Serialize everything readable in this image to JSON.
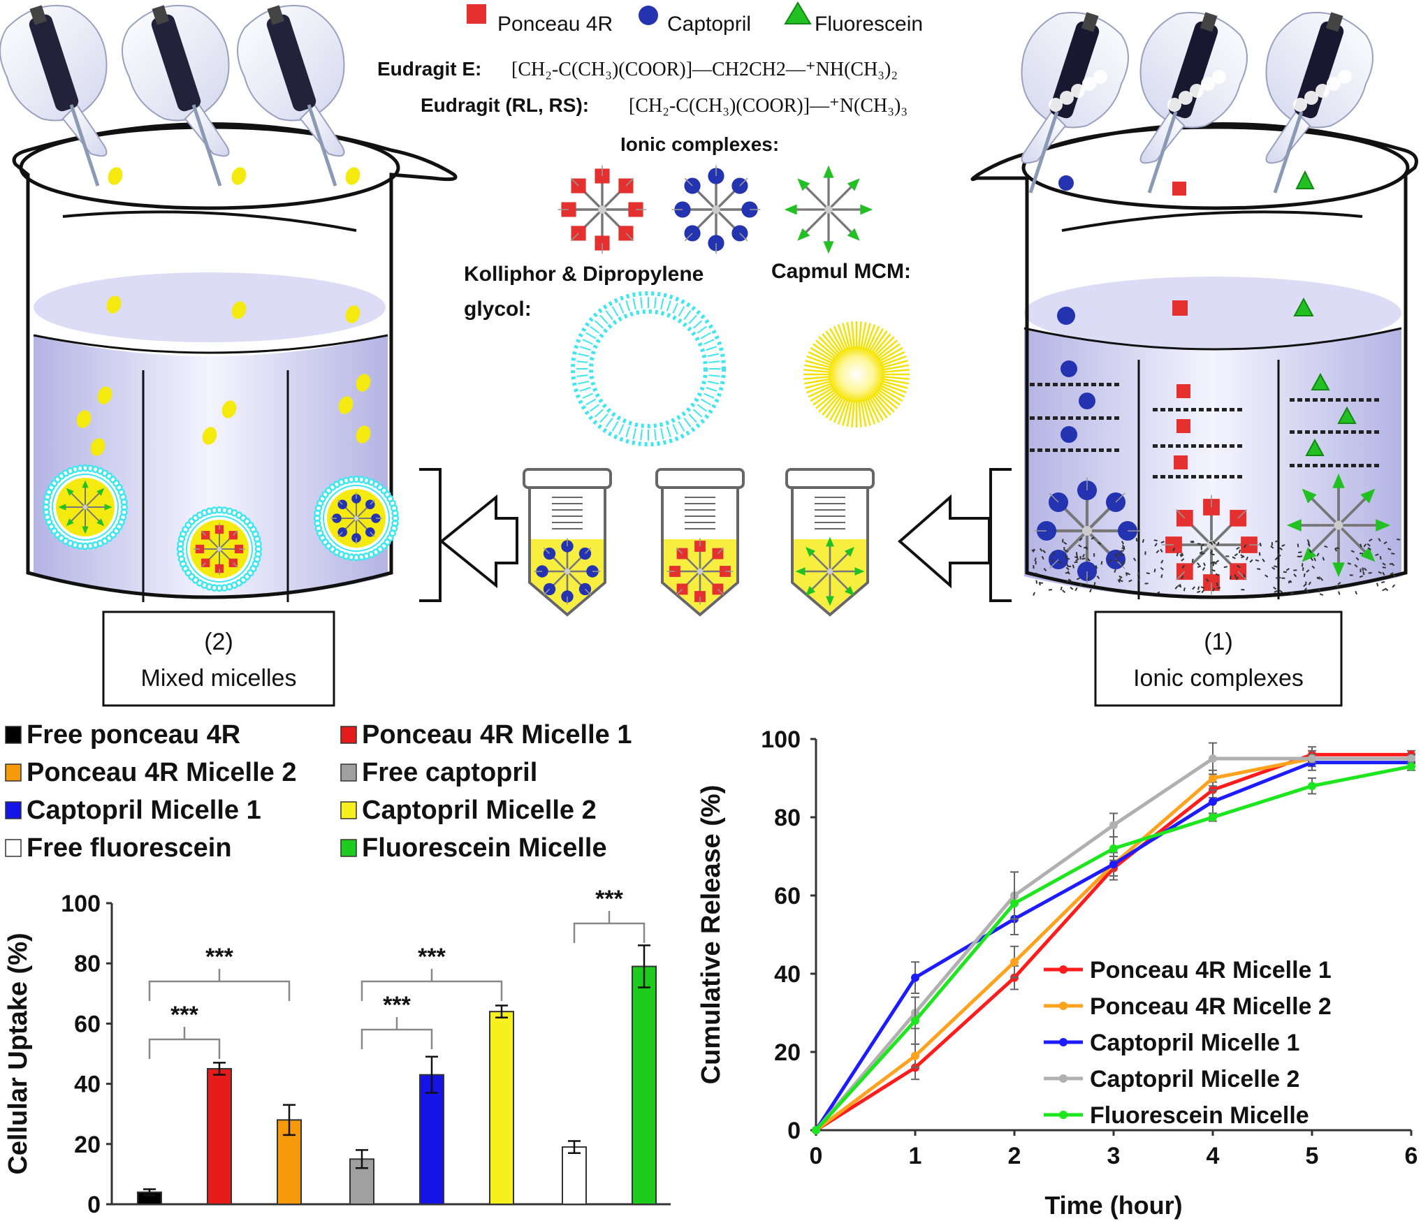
{
  "legend_top": {
    "square": "Ponceau 4R",
    "circle": "Captopril",
    "triangle": "Fluorescein"
  },
  "formulas": {
    "e_label": "Eudragit E:",
    "e_formula": "[CH₂-C(CH₃)(COOR)]—CH2CH2—⁺NH(CH₃)₂",
    "rl_label": "Eudragit (RL, RS):",
    "rl_formula": "[CH₂-C(CH₃)(COOR)]—⁺N(CH₃)₃"
  },
  "ionic_complexes_label": "Ionic complexes:",
  "kolliphor_label_1": "Kolliphor & Dipropylene",
  "kolliphor_label_2": "glycol:",
  "capmul_label": "Capmul MCM:",
  "box_left": {
    "num": "(2)",
    "name": "Mixed micelles"
  },
  "box_right": {
    "num": "(1)",
    "name": "Ionic complexes"
  },
  "colors": {
    "red": "#e53030",
    "blue": "#2433b0",
    "green": "#22c022",
    "yellow": "#f5ea10",
    "cyan": "#3fe6f0",
    "black": "#000000",
    "orange": "#f79a0a",
    "gray": "#a0a0a0",
    "white": "#ffffff"
  },
  "chart_data": [
    {
      "type": "bar",
      "ylabel": "Cellular Uptake (%)",
      "ylim": [
        0,
        100
      ],
      "yticks": [
        "0",
        "20",
        "40",
        "60",
        "80",
        "100"
      ],
      "legend_placement": "top",
      "legend": [
        "Free ponceau 4R",
        "Ponceau 4R Micelle 1",
        "Ponceau 4R Micelle 2",
        "Free captopril",
        "Captopril Micelle 1",
        "Captopril Micelle 2",
        "Free fluorescein",
        "Fluorescein Micelle"
      ],
      "series": [
        {
          "name": "Free ponceau 4R",
          "color": "#000000",
          "value": 4,
          "error": 1
        },
        {
          "name": "Ponceau 4R Micelle 1",
          "color": "#e61c1c",
          "value": 45,
          "error": 2
        },
        {
          "name": "Ponceau 4R Micelle 2",
          "color": "#f79a0a",
          "value": 28,
          "error": 5
        },
        {
          "name": "Free captopril",
          "color": "#a0a0a0",
          "value": 15,
          "error": 3
        },
        {
          "name": "Captopril Micelle 1",
          "color": "#1414e6",
          "value": 43,
          "error": 6
        },
        {
          "name": "Captopril Micelle 2",
          "color": "#f5f01e",
          "value": 64,
          "error": 2
        },
        {
          "name": "Free fluorescein",
          "color": "#ffffff",
          "value": 19,
          "error": 2
        },
        {
          "name": "Fluorescein Micelle",
          "color": "#1ecc1e",
          "value": 79,
          "error": 7
        }
      ],
      "significance": [
        {
          "from": 0,
          "to": 1,
          "label": "***"
        },
        {
          "from": 0,
          "to": 2,
          "label": "***"
        },
        {
          "from": 3,
          "to": 4,
          "label": "***"
        },
        {
          "from": 3,
          "to": 5,
          "label": "***"
        },
        {
          "from": 6,
          "to": 7,
          "label": "***"
        }
      ]
    },
    {
      "type": "line",
      "xlabel": "Time (hour)",
      "ylabel": "Cumulative Release (%)",
      "xlim": [
        0,
        6
      ],
      "ylim": [
        0,
        100
      ],
      "xticks": [
        "0",
        "1",
        "2",
        "3",
        "4",
        "5",
        "6"
      ],
      "yticks": [
        "0",
        "20",
        "40",
        "60",
        "80",
        "100"
      ],
      "legend_placement": "bottom-right",
      "x": [
        0,
        1,
        2,
        3,
        4,
        5,
        6
      ],
      "series": [
        {
          "name": "Ponceau 4R Micelle 1",
          "color": "#ff1c1c",
          "values": [
            0,
            16,
            39,
            67,
            87,
            96,
            96
          ],
          "errors": [
            0,
            3,
            3,
            3,
            2,
            2,
            1
          ]
        },
        {
          "name": "Ponceau 4R Micelle 2",
          "color": "#ffa21e",
          "values": [
            0,
            19,
            43,
            68,
            90,
            95,
            95
          ],
          "errors": [
            0,
            3,
            4,
            3,
            2,
            2,
            1
          ]
        },
        {
          "name": "Captopril Micelle 1",
          "color": "#1c1cff",
          "values": [
            0,
            39,
            54,
            68,
            84,
            94,
            94
          ],
          "errors": [
            0,
            4,
            4,
            3,
            3,
            2,
            1
          ]
        },
        {
          "name": "Captopril Micelle 2",
          "color": "#b0b0b0",
          "values": [
            0,
            30,
            60,
            78,
            95,
            95,
            95
          ],
          "errors": [
            0,
            4,
            6,
            3,
            4,
            1,
            1
          ]
        },
        {
          "name": "Fluorescein Micelle",
          "color": "#1ee61e",
          "values": [
            0,
            28,
            58,
            72,
            80,
            88,
            93
          ],
          "errors": [
            0,
            6,
            8,
            3,
            1,
            2,
            1
          ]
        }
      ]
    }
  ]
}
